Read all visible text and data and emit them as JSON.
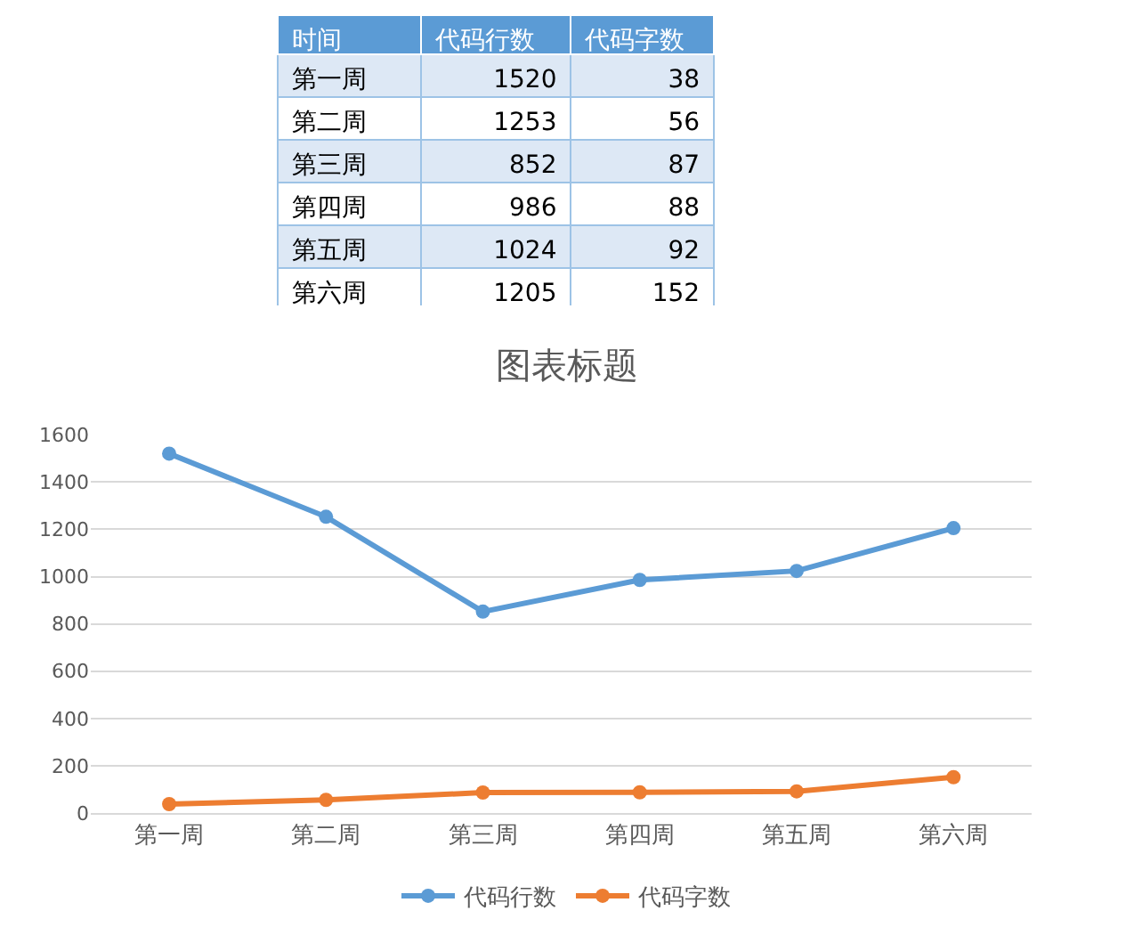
{
  "chart_data": [
    {
      "type": "other",
      "data_labels": true,
      "annotations": [
        "时间"
      ],
      "categories": [
        "第一周",
        "第二周",
        "第三周",
        "第四周",
        "第五周",
        "第六周"
      ],
      "series": [
        {
          "name": "代码行数",
          "colors": [
            "#dde8f5",
            "#ffffff",
            "#dde8f5",
            "#ffffff",
            "#dde8f5",
            "#ffffff"
          ],
          "values": [
            1520,
            1253,
            852,
            986,
            1024,
            1205
          ]
        },
        {
          "name": "代码字数",
          "colors": [
            "#dde8f5",
            "#ffffff",
            "#dde8f5",
            "#ffffff",
            "#dde8f5",
            "#ffffff"
          ],
          "values": [
            38,
            56,
            87,
            88,
            92,
            152
          ]
        }
      ]
    },
    {
      "type": "line",
      "title": "图表标题",
      "categories": [
        "第一周",
        "第二周",
        "第三周",
        "第四周",
        "第五周",
        "第六周"
      ],
      "series": [
        {
          "name": "代码行数",
          "color": "#5b9bd5",
          "values": [
            1520,
            1253,
            852,
            986,
            1024,
            1205
          ]
        },
        {
          "name": "代码字数",
          "color": "#ed7d31",
          "values": [
            38,
            56,
            87,
            88,
            92,
            152
          ]
        }
      ],
      "ylim": [
        0,
        1600
      ],
      "yticks": [
        0,
        200,
        400,
        600,
        800,
        1000,
        1200,
        1400,
        1600
      ],
      "grid": "y",
      "legend": "bottom",
      "marker": "circle",
      "line_style": "solid"
    }
  ]
}
